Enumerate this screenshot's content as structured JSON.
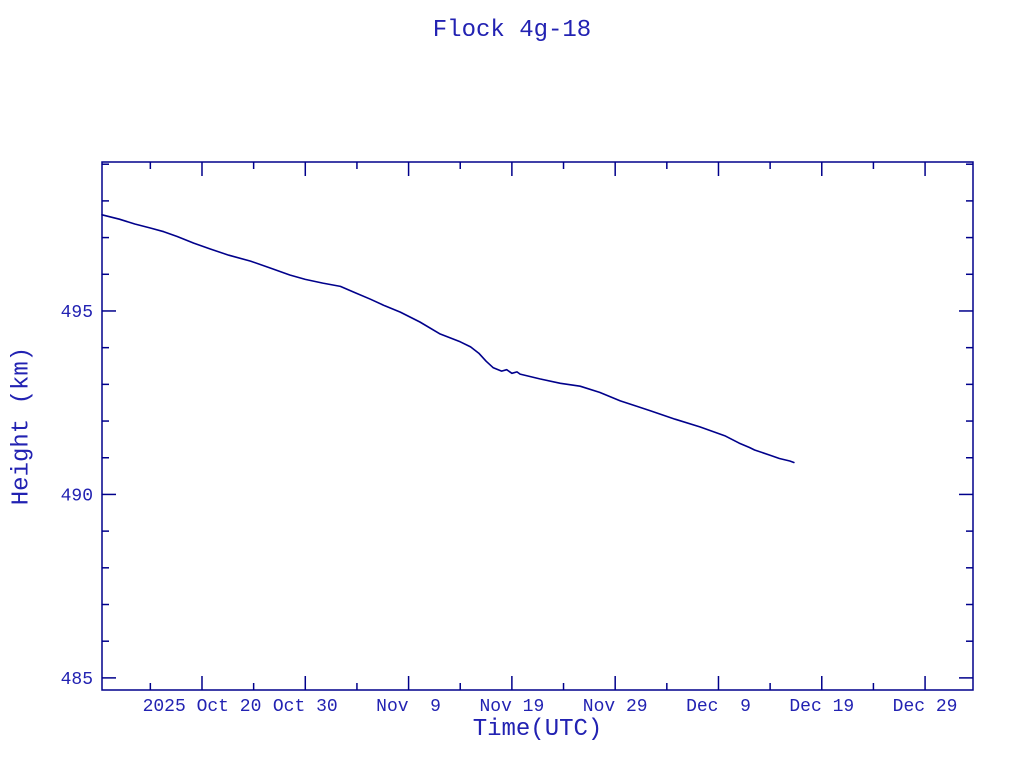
{
  "chart_data": {
    "type": "line",
    "title": "Flock 4g-18",
    "xlabel": "Time(UTC)",
    "ylabel": "Height (km)",
    "background": "#ffffff",
    "axis_color": "#00008b",
    "text_color": "#2222b2",
    "line_color": "#00008b",
    "grid": false,
    "legend": "none",
    "x_unit": "days since 2025-10-10 00:00 UTC",
    "xlim": [
      0.32,
      84.64
    ],
    "ylim": [
      484.67,
      499.06
    ],
    "x_major_ticks": [
      {
        "t": 10,
        "label": "2025 Oct 20"
      },
      {
        "t": 20,
        "label": "Oct 30"
      },
      {
        "t": 30,
        "label": "Nov  9"
      },
      {
        "t": 40,
        "label": "Nov 19"
      },
      {
        "t": 50,
        "label": "Nov 29"
      },
      {
        "t": 60,
        "label": "Dec  9"
      },
      {
        "t": 70,
        "label": "Dec 19"
      },
      {
        "t": 80,
        "label": "Dec 29"
      }
    ],
    "x_minor_ticks": [
      5,
      15,
      25,
      35,
      45,
      55,
      65,
      75
    ],
    "y_major_ticks": [
      {
        "v": 485,
        "label": "485"
      },
      {
        "v": 490,
        "label": "490"
      },
      {
        "v": 495,
        "label": "495"
      }
    ],
    "y_minor_ticks": [
      486,
      487,
      488,
      489,
      491,
      492,
      493,
      494,
      496,
      497,
      498,
      499
    ],
    "series": [
      {
        "name": "Flock 4g-18 height",
        "points": [
          [
            0.32,
            497.62
          ],
          [
            2.0,
            497.5
          ],
          [
            3.5,
            497.37
          ],
          [
            5.0,
            497.26
          ],
          [
            6.3,
            497.16
          ],
          [
            7.6,
            497.03
          ],
          [
            9.2,
            496.85
          ],
          [
            10.8,
            496.69
          ],
          [
            12.6,
            496.52
          ],
          [
            14.7,
            496.36
          ],
          [
            16.6,
            496.17
          ],
          [
            18.5,
            495.98
          ],
          [
            20.0,
            495.86
          ],
          [
            21.7,
            495.76
          ],
          [
            23.4,
            495.67
          ],
          [
            24.8,
            495.5
          ],
          [
            26.3,
            495.32
          ],
          [
            27.7,
            495.14
          ],
          [
            29.2,
            494.97
          ],
          [
            31.1,
            494.7
          ],
          [
            33.0,
            494.38
          ],
          [
            35.0,
            494.16
          ],
          [
            36.0,
            494.02
          ],
          [
            36.8,
            493.85
          ],
          [
            37.5,
            493.63
          ],
          [
            38.2,
            493.45
          ],
          [
            39.0,
            493.36
          ],
          [
            39.5,
            493.4
          ],
          [
            40.0,
            493.3
          ],
          [
            40.5,
            493.34
          ],
          [
            40.8,
            493.28
          ],
          [
            42.7,
            493.15
          ],
          [
            44.7,
            493.03
          ],
          [
            46.6,
            492.95
          ],
          [
            48.5,
            492.78
          ],
          [
            50.5,
            492.55
          ],
          [
            51.9,
            492.42
          ],
          [
            53.4,
            492.28
          ],
          [
            55.8,
            492.05
          ],
          [
            58.2,
            491.84
          ],
          [
            60.6,
            491.6
          ],
          [
            62.0,
            491.4
          ],
          [
            63.0,
            491.28
          ],
          [
            63.5,
            491.21
          ],
          [
            65.0,
            491.07
          ],
          [
            65.9,
            490.98
          ],
          [
            66.9,
            490.91
          ],
          [
            67.3,
            490.87
          ]
        ]
      }
    ]
  }
}
